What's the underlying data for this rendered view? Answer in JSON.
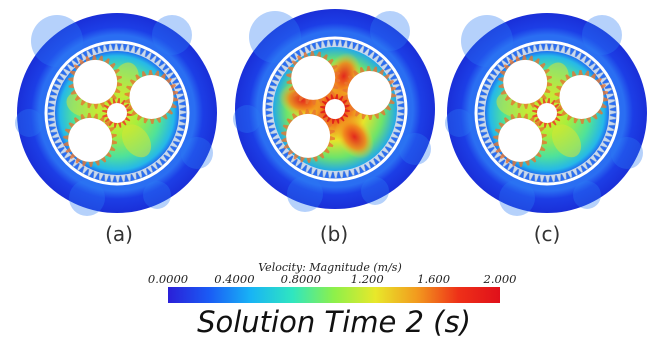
{
  "panels": [
    {
      "label": "(a)",
      "mode": "a"
    },
    {
      "label": "(b)",
      "mode": "b"
    },
    {
      "label": "(c)",
      "mode": "a"
    }
  ],
  "colorbar": {
    "title": "Velocity: Magnitude (m/s)",
    "ticks": [
      "0.0000",
      "0.4000",
      "0.8000",
      "1.200",
      "1.600",
      "2.000"
    ],
    "min": 0,
    "max": 2,
    "colors": [
      "#2a1fd8",
      "#1a5cf5",
      "#18b4f5",
      "#2fe6c0",
      "#8df04a",
      "#e8e82a",
      "#f29a1e",
      "#ee3018",
      "#e0101a"
    ]
  },
  "caption": "Solution Time 2 (s)",
  "palette": {
    "outer_ring": "#1c3ee6",
    "outer_ring_light": "#2c7cf4",
    "white": "#ffffff"
  }
}
